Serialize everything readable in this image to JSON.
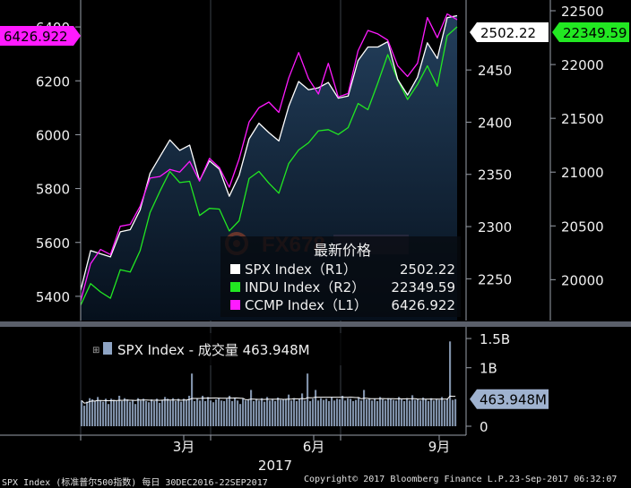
{
  "chart_data": [
    {
      "type": "line",
      "title": "最新价格",
      "xlabel": "2017",
      "x_ticks": [
        "3月",
        "6月",
        "9月"
      ],
      "x_range": [
        "2016-12-30",
        "2017-09-22"
      ],
      "axes": {
        "L1": {
          "ticks": [
            5400,
            5600,
            5800,
            6000,
            6200,
            6400
          ],
          "range": [
            5310,
            6500
          ]
        },
        "R1": {
          "ticks": [
            2250,
            2300,
            2350,
            2400,
            2450
          ],
          "range": [
            2210,
            2517
          ]
        },
        "R2": {
          "ticks": [
            20000,
            20500,
            21000,
            21500,
            22000,
            22500
          ],
          "range": [
            19620,
            22600
          ]
        }
      },
      "series": [
        {
          "name": "SPX Index（R1）",
          "label_value": "2502.22",
          "axis": "R1",
          "color": "#ffffff",
          "points": [
            [
              "2016-12-30",
              2239
            ],
            [
              "2017-01-06",
              2277
            ],
            [
              "2017-01-13",
              2274
            ],
            [
              "2017-01-20",
              2271
            ],
            [
              "2017-01-27",
              2295
            ],
            [
              "2017-02-03",
              2297
            ],
            [
              "2017-02-10",
              2316
            ],
            [
              "2017-02-17",
              2351
            ],
            [
              "2017-02-24",
              2367
            ],
            [
              "2017-03-03",
              2383
            ],
            [
              "2017-03-10",
              2373
            ],
            [
              "2017-03-17",
              2378
            ],
            [
              "2017-03-24",
              2344
            ],
            [
              "2017-03-31",
              2363
            ],
            [
              "2017-04-07",
              2355
            ],
            [
              "2017-04-14",
              2329
            ],
            [
              "2017-04-21",
              2349
            ],
            [
              "2017-04-28",
              2384
            ],
            [
              "2017-05-05",
              2399
            ],
            [
              "2017-05-12",
              2390
            ],
            [
              "2017-05-19",
              2382
            ],
            [
              "2017-05-26",
              2415
            ],
            [
              "2017-06-02",
              2439
            ],
            [
              "2017-06-09",
              2431
            ],
            [
              "2017-06-16",
              2433
            ],
            [
              "2017-06-23",
              2438
            ],
            [
              "2017-06-30",
              2423
            ],
            [
              "2017-07-07",
              2425
            ],
            [
              "2017-07-14",
              2459
            ],
            [
              "2017-07-21",
              2472
            ],
            [
              "2017-07-28",
              2472
            ],
            [
              "2017-08-04",
              2477
            ],
            [
              "2017-08-11",
              2441
            ],
            [
              "2017-08-18",
              2426
            ],
            [
              "2017-08-25",
              2443
            ],
            [
              "2017-09-01",
              2476
            ],
            [
              "2017-09-08",
              2461
            ],
            [
              "2017-09-15",
              2500
            ],
            [
              "2017-09-22",
              2502
            ]
          ]
        },
        {
          "name": "INDU Index（R2）",
          "label_value": "22349.59",
          "axis": "R2",
          "color": "#22e822",
          "points": [
            [
              "2016-12-30",
              19763
            ],
            [
              "2017-01-06",
              19964
            ],
            [
              "2017-01-13",
              19886
            ],
            [
              "2017-01-20",
              19827
            ],
            [
              "2017-01-27",
              20093
            ],
            [
              "2017-02-03",
              20071
            ],
            [
              "2017-02-10",
              20269
            ],
            [
              "2017-02-17",
              20624
            ],
            [
              "2017-02-24",
              20822
            ],
            [
              "2017-03-03",
              21006
            ],
            [
              "2017-03-10",
              20903
            ],
            [
              "2017-03-17",
              20914
            ],
            [
              "2017-03-24",
              20596
            ],
            [
              "2017-03-31",
              20663
            ],
            [
              "2017-04-07",
              20656
            ],
            [
              "2017-04-14",
              20453
            ],
            [
              "2017-04-21",
              20548
            ],
            [
              "2017-04-28",
              20940
            ],
            [
              "2017-05-05",
              21007
            ],
            [
              "2017-05-12",
              20897
            ],
            [
              "2017-05-19",
              20804
            ],
            [
              "2017-05-26",
              21080
            ],
            [
              "2017-06-02",
              21206
            ],
            [
              "2017-06-09",
              21272
            ],
            [
              "2017-06-16",
              21384
            ],
            [
              "2017-06-23",
              21395
            ],
            [
              "2017-06-30",
              21350
            ],
            [
              "2017-07-07",
              21414
            ],
            [
              "2017-07-14",
              21638
            ],
            [
              "2017-07-21",
              21580
            ],
            [
              "2017-07-28",
              21830
            ],
            [
              "2017-08-04",
              22092
            ],
            [
              "2017-08-11",
              21858
            ],
            [
              "2017-08-18",
              21675
            ],
            [
              "2017-08-25",
              21814
            ],
            [
              "2017-09-01",
              21988
            ],
            [
              "2017-09-08",
              21798
            ],
            [
              "2017-09-15",
              22268
            ],
            [
              "2017-09-22",
              22350
            ]
          ]
        },
        {
          "name": "CCMP Index（L1）",
          "label_value": "6426.922",
          "axis": "L1",
          "color": "#ff1aff",
          "points": [
            [
              "2016-12-30",
              5383
            ],
            [
              "2017-01-06",
              5521
            ],
            [
              "2017-01-13",
              5574
            ],
            [
              "2017-01-20",
              5555
            ],
            [
              "2017-01-27",
              5660
            ],
            [
              "2017-02-03",
              5667
            ],
            [
              "2017-02-10",
              5734
            ],
            [
              "2017-02-17",
              5839
            ],
            [
              "2017-02-24",
              5845
            ],
            [
              "2017-03-03",
              5871
            ],
            [
              "2017-03-10",
              5861
            ],
            [
              "2017-03-17",
              5901
            ],
            [
              "2017-03-24",
              5828
            ],
            [
              "2017-03-31",
              5912
            ],
            [
              "2017-04-07",
              5878
            ],
            [
              "2017-04-14",
              5805
            ],
            [
              "2017-04-21",
              5910
            ],
            [
              "2017-04-28",
              6047
            ],
            [
              "2017-05-05",
              6100
            ],
            [
              "2017-05-12",
              6121
            ],
            [
              "2017-05-19",
              6083
            ],
            [
              "2017-05-26",
              6210
            ],
            [
              "2017-06-02",
              6305
            ],
            [
              "2017-06-09",
              6208
            ],
            [
              "2017-06-16",
              6151
            ],
            [
              "2017-06-23",
              6265
            ],
            [
              "2017-06-30",
              6140
            ],
            [
              "2017-07-07",
              6153
            ],
            [
              "2017-07-14",
              6312
            ],
            [
              "2017-07-21",
              6387
            ],
            [
              "2017-07-28",
              6374
            ],
            [
              "2017-08-04",
              6351
            ],
            [
              "2017-08-11",
              6256
            ],
            [
              "2017-08-18",
              6216
            ],
            [
              "2017-08-25",
              6265
            ],
            [
              "2017-09-01",
              6435
            ],
            [
              "2017-09-08",
              6360
            ],
            [
              "2017-09-15",
              6448
            ],
            [
              "2017-09-22",
              6427
            ]
          ]
        }
      ]
    },
    {
      "type": "bar",
      "title": "SPX Index - 成交量 463.948M",
      "y_ticks": [
        "0",
        "1B",
        "1.5B"
      ],
      "ylim": [
        0,
        1700
      ],
      "last_value_label": "463.948M",
      "values_m": [
        440,
        350,
        420,
        480,
        460,
        430,
        500,
        440,
        420,
        470,
        380,
        470,
        450,
        430,
        520,
        430,
        480,
        460,
        420,
        440,
        380,
        480,
        440,
        470,
        430,
        410,
        460,
        430,
        470,
        400,
        450,
        500,
        470,
        440,
        480,
        430,
        470,
        420,
        470,
        450,
        520,
        900,
        430,
        470,
        440,
        520,
        430,
        500,
        440,
        410,
        460,
        480,
        440,
        430,
        470,
        520,
        430,
        480,
        440,
        380,
        470,
        440,
        450,
        620,
        430,
        470,
        440,
        480,
        420,
        500,
        440,
        470,
        430,
        490,
        450,
        460,
        470,
        540,
        440,
        480,
        430,
        470,
        560,
        440,
        900,
        430,
        470,
        620,
        440,
        480,
        450,
        470,
        430,
        500,
        440,
        470,
        460,
        520,
        440,
        480,
        470,
        430,
        450,
        490,
        440,
        620,
        460,
        480,
        440,
        470,
        430,
        500,
        460,
        440,
        480,
        470,
        450,
        440,
        500,
        460,
        430,
        480,
        440,
        530,
        450,
        470,
        440,
        490,
        460,
        430,
        480,
        440,
        470,
        450,
        500,
        440,
        470,
        1450,
        450,
        464
      ]
    }
  ],
  "panel_labels": {
    "watermark_logo": "FX678 汇金网"
  },
  "footer": {
    "left": "SPX Index (标准普尔500指数)  每日  30DEC2016-22SEP2017",
    "center": "Copyright© 2017 Bloomberg Finance L.P.",
    "right": "23-Sep-2017 06:32:07"
  },
  "colors": {
    "area_top": "#233f5c",
    "area_bottom": "#06101c",
    "volume_bar": "#7f90a8",
    "divider": "#5a5f6a"
  }
}
